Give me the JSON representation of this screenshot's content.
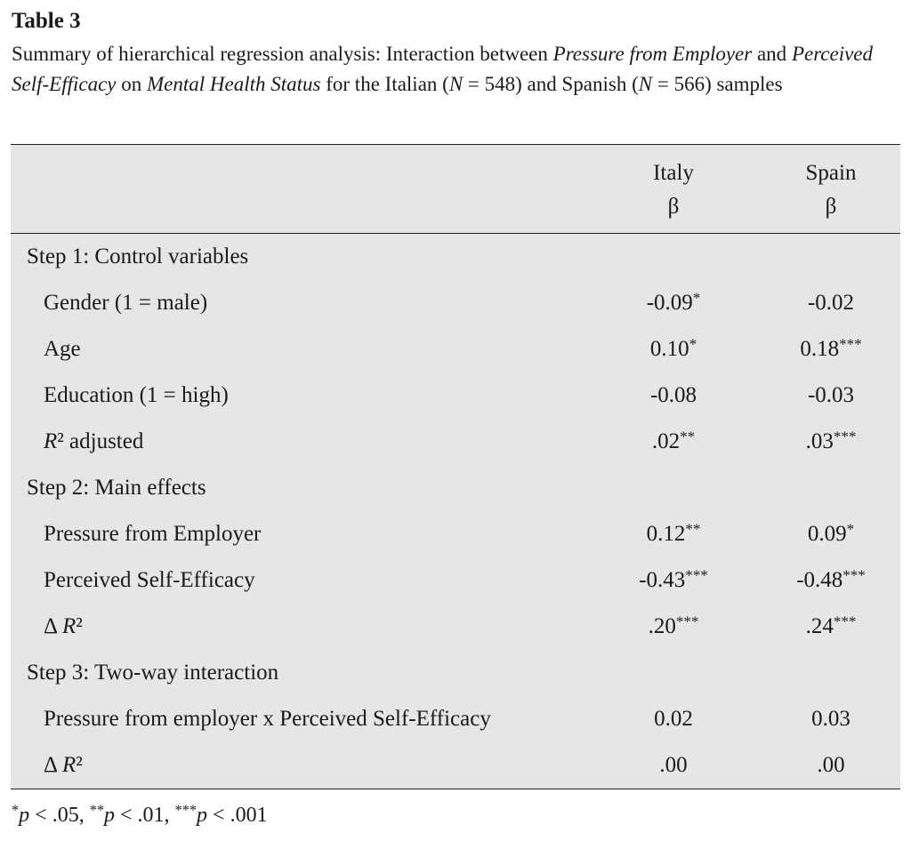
{
  "title": "Table 3",
  "caption": [
    "Summary of hierarchical regression analysis: Interaction between ",
    {
      "i": "Pressure from Employer"
    },
    " and ",
    {
      "i": "Perceived Self-Efficacy"
    },
    " on ",
    {
      "i": "Mental Health Status"
    },
    " for the Italian (",
    {
      "i": "N"
    },
    " = 548) and Spanish (",
    {
      "i": "N"
    },
    " = 566) samples"
  ],
  "table": {
    "columns": [
      {
        "name": "Italy",
        "sub": "β"
      },
      {
        "name": "Spain",
        "sub": "β"
      }
    ],
    "sections": [
      {
        "title": "Step 1: Control variables",
        "rows": [
          {
            "label": [
              "Gender (1 = male)"
            ],
            "cells": [
              [
                "-0.09",
                {
                  "sup": "*"
                }
              ],
              [
                "-0.02"
              ]
            ]
          },
          {
            "label": [
              "Age"
            ],
            "cells": [
              [
                "0.10",
                {
                  "sup": "*"
                }
              ],
              [
                "0.18",
                {
                  "sup": "***"
                }
              ]
            ]
          },
          {
            "label": [
              "Education (1 = high)"
            ],
            "cells": [
              [
                "-0.08"
              ],
              [
                "-0.03"
              ]
            ]
          },
          {
            "label": [
              {
                "i": "R"
              },
              "² adjusted"
            ],
            "cells": [
              [
                ".02",
                {
                  "sup": "**"
                }
              ],
              [
                ".03",
                {
                  "sup": "***"
                }
              ]
            ]
          }
        ]
      },
      {
        "title": "Step 2: Main effects",
        "rows": [
          {
            "label": [
              "Pressure from Employer"
            ],
            "cells": [
              [
                "0.12",
                {
                  "sup": "**"
                }
              ],
              [
                "0.09",
                {
                  "sup": "*"
                }
              ]
            ]
          },
          {
            "label": [
              "Perceived Self-Efficacy"
            ],
            "cells": [
              [
                "-0.43",
                {
                  "sup": "***"
                }
              ],
              [
                "-0.48",
                {
                  "sup": "***"
                }
              ]
            ]
          },
          {
            "label": [
              "Δ ",
              {
                "i": "R"
              },
              "²"
            ],
            "cells": [
              [
                ".20",
                {
                  "sup": "***"
                }
              ],
              [
                ".24",
                {
                  "sup": "***"
                }
              ]
            ]
          }
        ]
      },
      {
        "title": "Step 3: Two-way interaction",
        "rows": [
          {
            "label": [
              "Pressure from employer x Perceived Self-Efficacy"
            ],
            "cells": [
              [
                "0.02"
              ],
              [
                "0.03"
              ]
            ]
          },
          {
            "label": [
              "Δ ",
              {
                "i": "R"
              },
              "²"
            ],
            "cells": [
              [
                ".00"
              ],
              [
                ".00"
              ]
            ]
          }
        ]
      }
    ]
  },
  "footnote": [
    {
      "sup": "*"
    },
    {
      "i": "p"
    },
    " < .05, ",
    {
      "sup": "**"
    },
    {
      "i": "p"
    },
    " < .01, ",
    {
      "sup": "***"
    },
    {
      "i": "p"
    },
    " < .001"
  ]
}
